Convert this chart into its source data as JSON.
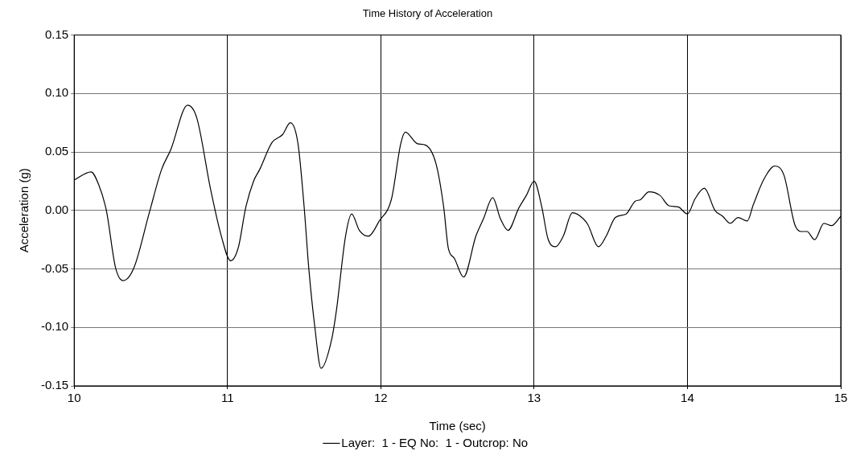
{
  "chart_data": {
    "type": "line",
    "title": "Time History of Acceleration",
    "xlabel": "Time (sec)",
    "ylabel": "Acceleration (g)",
    "xlim": [
      10,
      15
    ],
    "xticks": [
      10,
      11,
      12,
      13,
      14,
      15
    ],
    "ylim": [
      -0.15,
      0.15
    ],
    "yticks": [
      -0.15,
      {
        "value": -0.1,
        "label": "-0.10"
      },
      -0.05,
      {
        "value": 0,
        "label": "0.00"
      },
      0.05,
      {
        "value": 0.1,
        "label": "0.10"
      },
      0.15
    ],
    "grid": true,
    "legend": "bottom",
    "marker": "none",
    "line_style": "solid",
    "x": [
      10.0,
      10.11,
      10.16,
      10.21,
      10.27,
      10.32,
      10.39,
      10.49,
      10.57,
      10.63,
      10.74,
      10.8,
      10.89,
      10.96,
      11.02,
      11.07,
      11.12,
      11.17,
      11.21,
      11.29,
      11.36,
      11.41,
      11.46,
      11.5,
      11.53,
      11.57,
      11.61,
      11.68,
      11.71,
      11.77,
      11.81,
      11.86,
      11.92,
      11.99,
      12.07,
      12.13,
      12.16,
      12.24,
      12.29,
      12.36,
      12.41,
      12.44,
      12.48,
      12.54,
      12.62,
      12.67,
      12.73,
      12.78,
      12.83,
      12.9,
      12.95,
      13.0,
      13.05,
      13.09,
      13.14,
      13.19,
      13.25,
      13.32,
      13.35,
      13.42,
      13.47,
      13.53,
      13.6,
      13.66,
      13.69,
      13.75,
      13.82,
      13.88,
      13.94,
      14.0,
      14.05,
      14.11,
      14.18,
      14.23,
      14.28,
      14.33,
      14.39,
      14.43,
      14.5,
      14.57,
      14.63,
      14.7,
      14.74,
      14.78,
      14.83,
      14.89,
      14.94,
      15.0
    ],
    "series": [
      {
        "name": "Layer:  1 - EQ No:  1 - Outcrop: No",
        "color": "#000000",
        "values": [
          0.026,
          0.033,
          0.022,
          0,
          -0.049,
          -0.06,
          -0.049,
          -0.002,
          0.035,
          0.052,
          0.09,
          0.079,
          0.018,
          -0.022,
          -0.043,
          -0.032,
          0.003,
          0.025,
          0.035,
          0.058,
          0.065,
          0.075,
          0.057,
          0.003,
          -0.049,
          -0.1,
          -0.135,
          -0.11,
          -0.086,
          -0.022,
          -0.003,
          -0.017,
          -0.022,
          -0.009,
          0.01,
          0.057,
          0.067,
          0.057,
          0.056,
          0.04,
          0.003,
          -0.032,
          -0.041,
          -0.057,
          -0.022,
          -0.007,
          0.011,
          -0.007,
          -0.017,
          0.002,
          0.013,
          0.025,
          0.003,
          -0.024,
          -0.031,
          -0.022,
          -0.002,
          -0.007,
          -0.012,
          -0.031,
          -0.022,
          -0.006,
          -0.003,
          0.008,
          0.009,
          0.016,
          0.013,
          0.004,
          0.003,
          -0.003,
          0.01,
          0.019,
          0.0,
          -0.005,
          -0.011,
          -0.006,
          -0.009,
          0.005,
          0.027,
          0.038,
          0.03,
          -0.012,
          -0.018,
          -0.018,
          -0.025,
          -0.011,
          -0.013,
          -0.005
        ]
      }
    ]
  }
}
